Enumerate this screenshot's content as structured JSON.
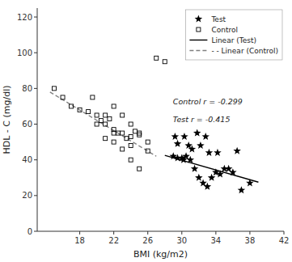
{
  "chart_data": {
    "type": "scatter",
    "xlabel": "BMI (kg/m2)",
    "ylabel": "HDL - C (mg/dl)",
    "xlim": [
      13,
      42
    ],
    "ylim": [
      0,
      125
    ],
    "xticks": [
      18,
      22,
      26,
      30,
      34,
      38,
      42
    ],
    "yticks": [
      0,
      20,
      40,
      60,
      80,
      100,
      120
    ],
    "grid": false,
    "legend": "upper right",
    "annotations": [
      "Control r = -0.299",
      "Test r = -0.415"
    ],
    "series": [
      {
        "name": "Test",
        "type": "scatter",
        "marker": "star",
        "color": "black",
        "x": [
          29,
          29.5,
          30,
          30.2,
          30.5,
          31,
          31.5,
          32,
          32.5,
          33,
          33.5,
          34,
          34.5,
          35,
          35.5,
          36,
          37,
          38,
          29.5,
          30.8,
          31.2,
          32.2,
          33.2,
          34.2,
          29.2,
          30.3,
          31.8,
          32.8,
          36.5
        ],
        "values": [
          42,
          41,
          41,
          40,
          42,
          40,
          35,
          30,
          27,
          25,
          30,
          33,
          32,
          35,
          35,
          33,
          23,
          27,
          49,
          48,
          46,
          48,
          44,
          44,
          53,
          53,
          55,
          53,
          45
        ]
      },
      {
        "name": "Control",
        "type": "scatter",
        "marker": "open-square",
        "color": "black",
        "x": [
          15,
          16,
          17,
          18,
          19,
          20,
          21,
          22,
          23,
          24,
          25,
          20.5,
          21.5,
          22.5,
          23.5,
          24.5,
          22,
          23,
          24,
          25,
          26,
          19.5,
          21,
          22,
          24,
          26,
          20,
          21,
          22,
          23,
          24,
          25,
          27,
          28
        ],
        "values": [
          80,
          75,
          70,
          68,
          67,
          65,
          60,
          57,
          55,
          53,
          54,
          62,
          63,
          55,
          52,
          56,
          70,
          65,
          60,
          55,
          50,
          75,
          65,
          55,
          48,
          45,
          60,
          52,
          50,
          46,
          40,
          35,
          97,
          95
        ]
      },
      {
        "name": "Linear (Test)",
        "type": "line",
        "line_style": "solid",
        "color": "black",
        "x": [
          28,
          39
        ],
        "values": [
          42.5,
          27.5
        ]
      },
      {
        "name": "- - Linear (Control)",
        "type": "line",
        "line_style": "dashed",
        "color": "gray",
        "x": [
          14.5,
          27
        ],
        "values": [
          78,
          42
        ]
      }
    ]
  }
}
